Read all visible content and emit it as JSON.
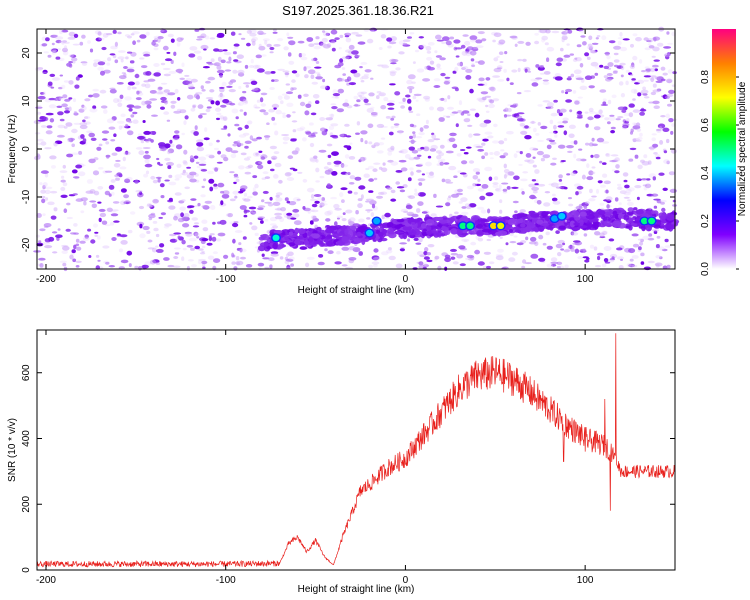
{
  "title": "S197.2025.361.18.36.R21",
  "chart_data": [
    {
      "type": "heatmap",
      "xlabel": "Height of straight line (km)",
      "ylabel": "Frequency (Hz)",
      "xlim": [
        -205,
        150
      ],
      "ylim": [
        -25,
        25
      ],
      "xticks": [
        -200,
        -100,
        0,
        100
      ],
      "yticks": [
        -20,
        -10,
        0,
        10,
        20
      ],
      "colorbar": {
        "label": "Normalized spectral amplitude",
        "range": [
          0.0,
          1.0
        ],
        "ticks": [
          "0.0",
          "0.2",
          "0.4",
          "0.6",
          "0.8"
        ],
        "colors": [
          "#ffffff",
          "#8000ff",
          "#0000ff",
          "#00ffff",
          "#00ff00",
          "#ffff00",
          "#ff8000",
          "#ff0080"
        ]
      },
      "band": {
        "points": [
          [
            -75,
            -19
          ],
          [
            -50,
            -18.5
          ],
          [
            -20,
            -17.5
          ],
          [
            0,
            -16.5
          ],
          [
            30,
            -16
          ],
          [
            50,
            -16
          ],
          [
            80,
            -15
          ],
          [
            110,
            -14.5
          ],
          [
            150,
            -15
          ]
        ]
      },
      "hotspots": [
        {
          "x": -72,
          "y": -18.5,
          "value": 0.45
        },
        {
          "x": -20,
          "y": -17.5,
          "value": 0.4
        },
        {
          "x": -16,
          "y": -15,
          "value": 0.38
        },
        {
          "x": 32,
          "y": -16,
          "value": 0.5
        },
        {
          "x": 36,
          "y": -16,
          "value": 0.5
        },
        {
          "x": 49,
          "y": -16,
          "value": 0.75
        },
        {
          "x": 53,
          "y": -16,
          "value": 0.7
        },
        {
          "x": 83,
          "y": -14.5,
          "value": 0.38
        },
        {
          "x": 87,
          "y": -14,
          "value": 0.4
        },
        {
          "x": 133,
          "y": -15,
          "value": 0.5
        },
        {
          "x": 137,
          "y": -15,
          "value": 0.5
        }
      ]
    },
    {
      "type": "line",
      "xlabel": "Height of straight line (km)",
      "ylabel": "SNR (10 * v/v)",
      "xlim": [
        -205,
        150
      ],
      "ylim": [
        0,
        730
      ],
      "xticks": [
        -200,
        -100,
        0,
        100
      ],
      "yticks": [
        0,
        200,
        400,
        600
      ],
      "color": "#e8201c",
      "envelope": [
        [
          -205,
          18
        ],
        [
          -100,
          18
        ],
        [
          -70,
          20
        ],
        [
          -65,
          80
        ],
        [
          -60,
          100
        ],
        [
          -55,
          55
        ],
        [
          -50,
          90
        ],
        [
          -45,
          40
        ],
        [
          -40,
          15
        ],
        [
          -35,
          100
        ],
        [
          -25,
          240
        ],
        [
          -20,
          260
        ],
        [
          -10,
          310
        ],
        [
          0,
          340
        ],
        [
          10,
          410
        ],
        [
          20,
          480
        ],
        [
          30,
          550
        ],
        [
          40,
          590
        ],
        [
          50,
          600
        ],
        [
          60,
          580
        ],
        [
          70,
          540
        ],
        [
          80,
          490
        ],
        [
          90,
          440
        ],
        [
          100,
          400
        ],
        [
          110,
          380
        ],
        [
          115,
          360
        ],
        [
          120,
          300
        ],
        [
          130,
          300
        ],
        [
          150,
          300
        ]
      ],
      "spikes": [
        {
          "x": 88,
          "y": 330
        },
        {
          "x": 100,
          "y": 360
        },
        {
          "x": 111,
          "y": 520
        },
        {
          "x": 114,
          "y": 180
        },
        {
          "x": 117,
          "y": 720
        }
      ]
    }
  ]
}
